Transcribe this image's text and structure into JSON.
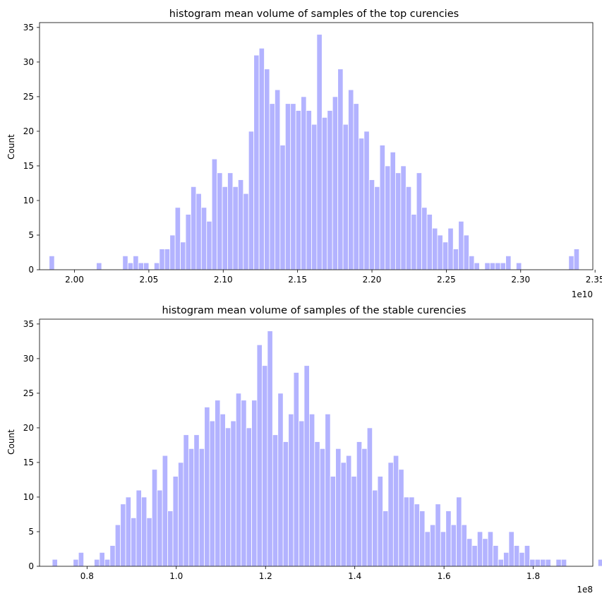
{
  "colors": {
    "bar": "#b3b3ff",
    "bar_edge": "#ffffff",
    "axis": "#000000"
  },
  "chart_data": [
    {
      "type": "bar",
      "title": "histogram mean volume of samples of the top curencies",
      "xlabel": "",
      "ylabel": "Count",
      "offset_label": "1e10",
      "xlim": [
        1.9765,
        2.3485
      ],
      "ylim": [
        0,
        35.7
      ],
      "x_ticks": [
        2.0,
        2.05,
        2.1,
        2.15,
        2.2,
        2.25,
        2.3,
        2.35
      ],
      "x_tick_labels": [
        "2.00",
        "2.05",
        "2.10",
        "2.15",
        "2.20",
        "2.25",
        "2.30",
        "2.35"
      ],
      "y_ticks": [
        0,
        5,
        10,
        15,
        20,
        25,
        30,
        35
      ],
      "y_tick_labels": [
        "0",
        "5",
        "10",
        "15",
        "20",
        "25",
        "30",
        "35"
      ],
      "bin_start": 1.983,
      "bin_width": 0.003528,
      "values": [
        2,
        0,
        0,
        0,
        0,
        0,
        0,
        0,
        0,
        1,
        0,
        0,
        0,
        0,
        2,
        1,
        2,
        1,
        1,
        0,
        1,
        3,
        3,
        5,
        9,
        4,
        8,
        12,
        11,
        9,
        7,
        16,
        14,
        12,
        14,
        12,
        13,
        11,
        20,
        31,
        32,
        29,
        24,
        26,
        18,
        24,
        24,
        23,
        25,
        23,
        21,
        34,
        22,
        23,
        25,
        29,
        21,
        26,
        24,
        19,
        20,
        13,
        12,
        18,
        15,
        17,
        14,
        15,
        12,
        8,
        14,
        9,
        8,
        6,
        5,
        4,
        6,
        3,
        7,
        5,
        2,
        1,
        0,
        1,
        1,
        1,
        1,
        2,
        0,
        1,
        0,
        0,
        0,
        0,
        0,
        0,
        0,
        0,
        0,
        2,
        3
      ]
    },
    {
      "type": "bar",
      "title": "histogram mean volume of samples of the stable curencies",
      "xlabel": "",
      "ylabel": "Count",
      "offset_label": "1e8",
      "xlim": [
        0.6935,
        1.9335
      ],
      "ylim": [
        0,
        35.7
      ],
      "x_ticks": [
        0.8,
        1.0,
        1.2,
        1.4,
        1.6,
        1.8
      ],
      "x_tick_labels": [
        "0.8",
        "1.0",
        "1.2",
        "1.4",
        "1.6",
        "1.8"
      ],
      "y_ticks": [
        0,
        5,
        10,
        15,
        20,
        25,
        30,
        35
      ],
      "y_tick_labels": [
        "0",
        "5",
        "10",
        "15",
        "20",
        "25",
        "30",
        "35"
      ],
      "bin_start": 0.722,
      "bin_width": 0.011761,
      "values": [
        1,
        0,
        0,
        0,
        1,
        2,
        0,
        0,
        1,
        2,
        1,
        3,
        6,
        9,
        10,
        7,
        11,
        10,
        7,
        14,
        11,
        16,
        8,
        13,
        15,
        19,
        17,
        19,
        17,
        23,
        21,
        24,
        22,
        20,
        21,
        25,
        24,
        20,
        24,
        32,
        29,
        34,
        19,
        25,
        18,
        22,
        28,
        21,
        29,
        22,
        18,
        17,
        22,
        13,
        17,
        15,
        16,
        13,
        18,
        17,
        20,
        11,
        13,
        8,
        15,
        16,
        14,
        10,
        10,
        9,
        8,
        5,
        6,
        9,
        5,
        8,
        6,
        10,
        6,
        4,
        3,
        5,
        4,
        5,
        3,
        1,
        2,
        5,
        3,
        2,
        3,
        1,
        1,
        1,
        1,
        0,
        1,
        1,
        0,
        0,
        0,
        0,
        0,
        0,
        1
      ]
    }
  ]
}
